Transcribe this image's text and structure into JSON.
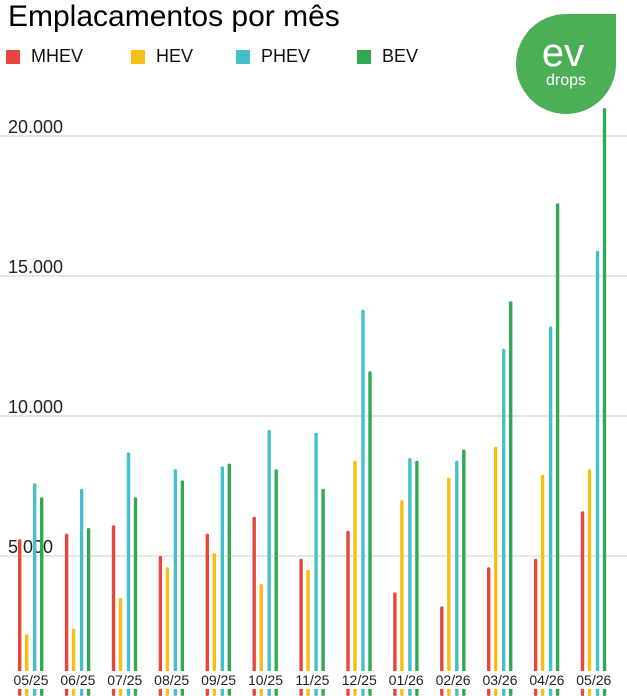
{
  "colors": {
    "MHEV": "#e8453c",
    "HEV": "#f7bf12",
    "PHEV": "#45bfc9",
    "BEV": "#33a852",
    "logo_bg": "#4cae55",
    "gridline": "#cccccc"
  },
  "logo": {
    "main": "ev",
    "sub": "drops"
  },
  "chart_data": {
    "type": "bar",
    "title": "Emplacamentos por mês",
    "categories": [
      "05/25",
      "06/25",
      "07/25",
      "08/25",
      "09/25",
      "10/25",
      "11/25",
      "12/25",
      "01/26",
      "02/26",
      "03/26",
      "04/26",
      "05/26"
    ],
    "series": [
      {
        "name": "MHEV",
        "values": [
          5600,
          5800,
          6100,
          5000,
          5800,
          6400,
          4900,
          5900,
          3700,
          3200,
          4600,
          4900,
          6600
        ]
      },
      {
        "name": "HEV",
        "values": [
          2200,
          2400,
          3500,
          4600,
          5100,
          4000,
          4500,
          8400,
          7000,
          7800,
          8900,
          7900,
          8100
        ]
      },
      {
        "name": "PHEV",
        "values": [
          7600,
          7400,
          8700,
          8100,
          8200,
          9500,
          9400,
          13800,
          8500,
          8400,
          12400,
          13200,
          15900
        ]
      },
      {
        "name": "BEV",
        "values": [
          7100,
          6000,
          7100,
          7700,
          8300,
          8100,
          7400,
          11600,
          8400,
          8800,
          14100,
          17600,
          21000
        ]
      }
    ],
    "ylim": [
      0,
      21000
    ],
    "yticks": [
      {
        "value": 5000,
        "label": "5.000"
      },
      {
        "value": 10000,
        "label": "10.000"
      },
      {
        "value": 15000,
        "label": "15.000"
      },
      {
        "value": 20000,
        "label": "20.000"
      }
    ],
    "grid": true,
    "legend_position": "top-left"
  }
}
